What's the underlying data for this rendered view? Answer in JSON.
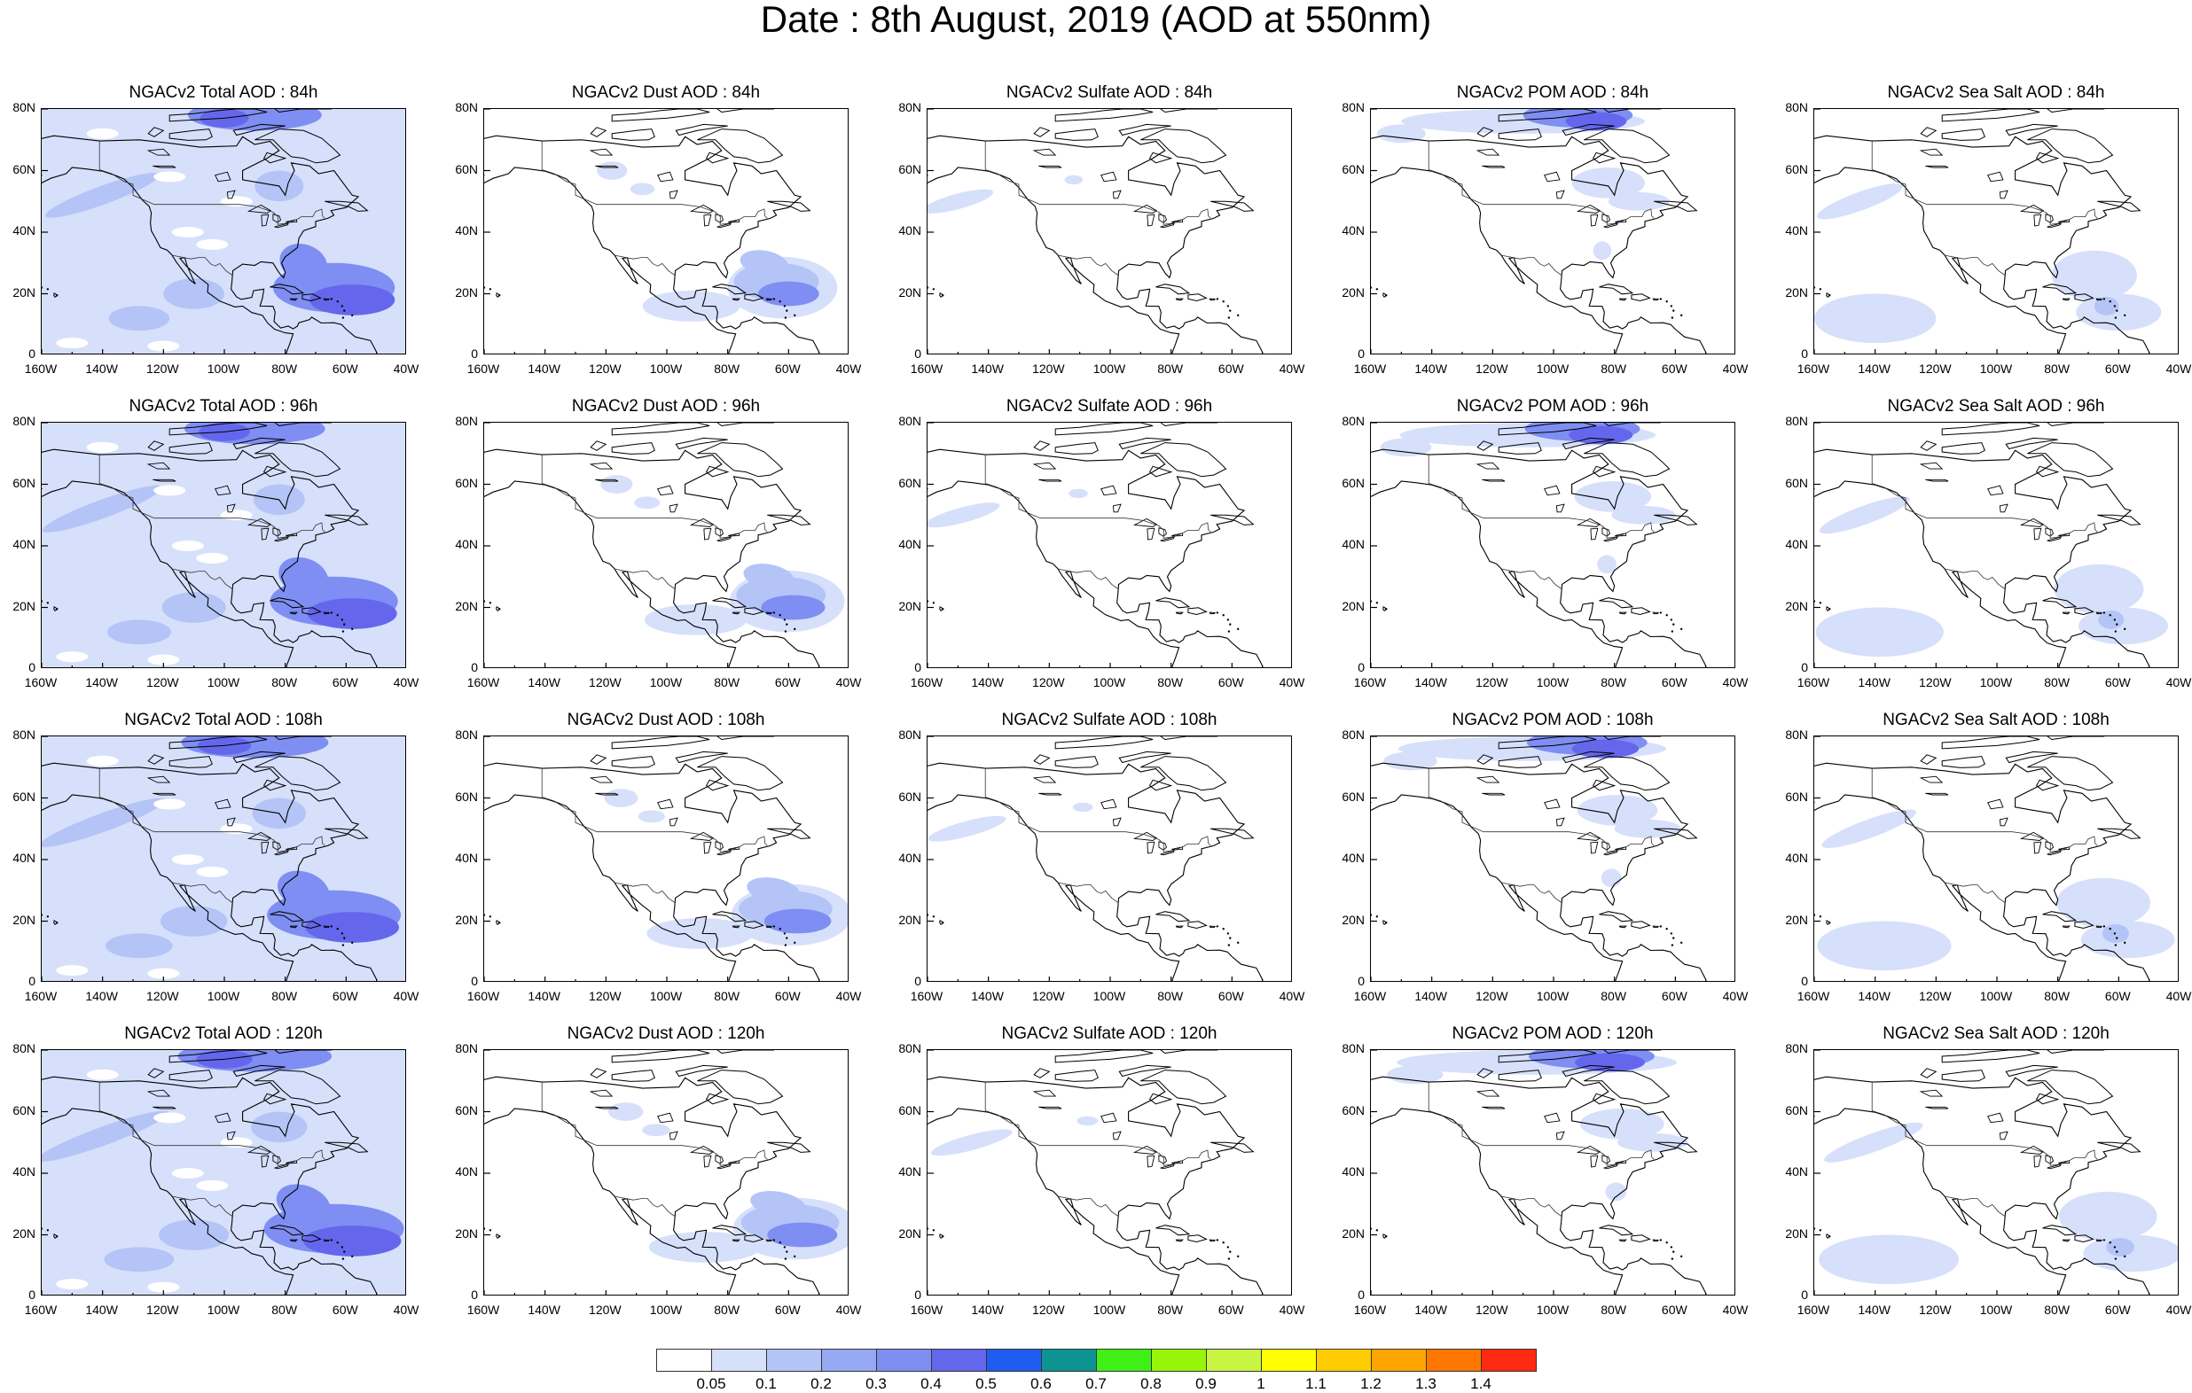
{
  "title": "Date : 8th August, 2019 (AOD at 550nm)",
  "rows": [
    "84h",
    "96h",
    "108h",
    "120h"
  ],
  "panels": [
    [
      "NGACv2 Total AOD : 84h",
      "NGACv2 Dust AOD : 84h",
      "NGACv2 Sulfate AOD : 84h",
      "NGACv2 POM AOD : 84h",
      "NGACv2 Sea Salt AOD : 84h"
    ],
    [
      "NGACv2 Total AOD : 96h",
      "NGACv2 Dust AOD : 96h",
      "NGACv2 Sulfate AOD : 96h",
      "NGACv2 POM AOD : 96h",
      "NGACv2 Sea Salt AOD : 96h"
    ],
    [
      "NGACv2 Total AOD : 108h",
      "NGACv2 Dust AOD : 108h",
      "NGACv2 Sulfate AOD : 108h",
      "NGACv2 POM AOD : 108h",
      "NGACv2 Sea Salt AOD : 108h"
    ],
    [
      "NGACv2 Total AOD : 120h",
      "NGACv2 Dust AOD : 120h",
      "NGACv2 Sulfate AOD : 120h",
      "NGACv2 POM AOD : 120h",
      "NGACv2 Sea Salt  AOD : 120h"
    ]
  ],
  "lat_ticks": [
    "80N",
    "60N",
    "40N",
    "20N",
    "0"
  ],
  "lon_ticks": [
    "160W",
    "140W",
    "120W",
    "100W",
    "80W",
    "60W",
    "40W"
  ],
  "colorbar": {
    "labels": [
      "0.05",
      "0.1",
      "0.2",
      "0.3",
      "0.4",
      "0.5",
      "0.6",
      "0.7",
      "0.8",
      "0.9",
      "1",
      "1.1",
      "1.2",
      "1.3",
      "1.4"
    ],
    "colors": [
      "#ffffff",
      "#d6e0fb",
      "#b4c4f7",
      "#96a9f4",
      "#7f8ef2",
      "#6467ec",
      "#1f5cf0",
      "#0e9393",
      "#3ff017",
      "#97f50a",
      "#c8f542",
      "#ffff00",
      "#ffcc00",
      "#ffa500",
      "#ff7700",
      "#ff2a12"
    ]
  },
  "map_extent": {
    "lon": [
      -160,
      -40
    ],
    "lat": [
      0,
      80
    ]
  },
  "colors": {
    "light": "#d6e0fb",
    "mid": "#b4c4f7",
    "strong": "#7f8ef2",
    "deep": "#6467ec",
    "coast": "#000000"
  }
}
